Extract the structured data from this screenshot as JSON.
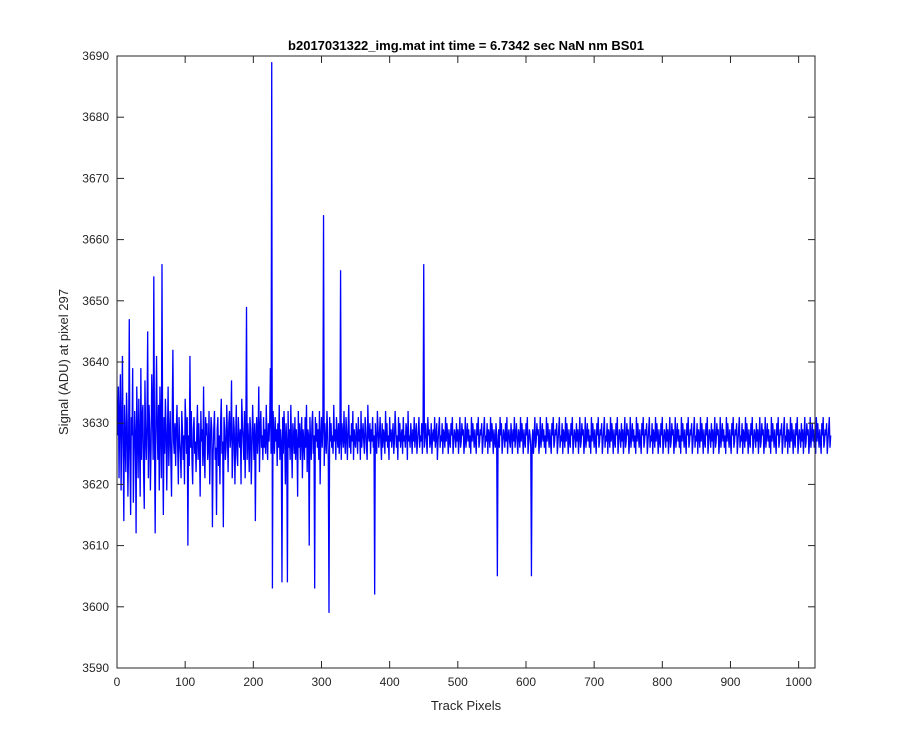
{
  "chart_data": {
    "type": "line",
    "title": "b2017031322_img.mat int time = 6.7342 sec  NaN nm BS01",
    "xlabel": "Track Pixels",
    "ylabel": "Signal (ADU) at pixel 297",
    "xlim": [
      0,
      1024
    ],
    "ylim": [
      3590,
      3690
    ],
    "xticks": [
      0,
      100,
      200,
      300,
      400,
      500,
      600,
      700,
      800,
      900,
      1000
    ],
    "yticks": [
      3590,
      3600,
      3610,
      3620,
      3630,
      3640,
      3650,
      3660,
      3670,
      3680,
      3690
    ],
    "grid": false,
    "legend": "none",
    "line_color": "#0000ff",
    "series": [
      {
        "x_start": 1,
        "x_step": 1,
        "values_note": "",
        "values": [
          3628,
          3636,
          3621,
          3632,
          3638,
          3619,
          3629,
          3641,
          3626,
          3614,
          3633,
          3627,
          3622,
          3635,
          3630,
          3618,
          3626,
          3647,
          3624,
          3615,
          3631,
          3628,
          3639,
          3617,
          3625,
          3632,
          3628,
          3612,
          3636,
          3629,
          3621,
          3634,
          3627,
          3618,
          3639,
          3624,
          3631,
          3633,
          3622,
          3616,
          3637,
          3628,
          3624,
          3630,
          3645,
          3621,
          3633,
          3629,
          3619,
          3626,
          3638,
          3632,
          3624,
          3654,
          3627,
          3612,
          3630,
          3641,
          3629,
          3624,
          3633,
          3619,
          3636,
          3629,
          3621,
          3656,
          3627,
          3615,
          3631,
          3625,
          3634,
          3629,
          3619,
          3628,
          3636,
          3623,
          3628,
          3632,
          3624,
          3618,
          3631,
          3642,
          3627,
          3625,
          3630,
          3623,
          3629,
          3633,
          3626,
          3620,
          3631,
          3627,
          3625,
          3621,
          3632,
          3629,
          3624,
          3628,
          3620,
          3634,
          3630,
          3625,
          3631,
          3610,
          3628,
          3623,
          3641,
          3626,
          3632,
          3624,
          3620,
          3629,
          3631,
          3625,
          3627,
          3622,
          3628,
          3633,
          3624,
          3630,
          3626,
          3618,
          3632,
          3627,
          3629,
          3623,
          3636,
          3625,
          3621,
          3631,
          3628,
          3630,
          3624,
          3626,
          3632,
          3620,
          3627,
          3631,
          3629,
          3613,
          3625,
          3629,
          3632,
          3624,
          3626,
          3615,
          3629,
          3631,
          3623,
          3628,
          3620,
          3630,
          3634,
          3625,
          3627,
          3613,
          3631,
          3629,
          3624,
          3626,
          3633,
          3628,
          3622,
          3630,
          3632,
          3626,
          3628,
          3637,
          3621,
          3625,
          3631,
          3629,
          3620,
          3627,
          3633,
          3625,
          3623,
          3631,
          3628,
          3626,
          3629,
          3620,
          3634,
          3630,
          3627,
          3624,
          3632,
          3621,
          3628,
          3649,
          3624,
          3630,
          3627,
          3622,
          3631,
          3629,
          3620,
          3626,
          3633,
          3628,
          3624,
          3630,
          3614,
          3628,
          3631,
          3625,
          3628,
          3636,
          3622,
          3629,
          3632,
          3626,
          3628,
          3624,
          3631,
          3626,
          3629,
          3625,
          3633,
          3627,
          3624,
          3630,
          3627,
          3630,
          3639,
          3625,
          3689,
          3603,
          3632,
          3628,
          3625,
          3631,
          3627,
          3629,
          3623,
          3630,
          3626,
          3633,
          3624,
          3629,
          3627,
          3604,
          3631,
          3625,
          3632,
          3628,
          3620,
          3630,
          3627,
          3604,
          3632,
          3626,
          3629,
          3624,
          3633,
          3627,
          3621,
          3630,
          3628,
          3625,
          3631,
          3624,
          3629,
          3627,
          3618,
          3632,
          3626,
          3630,
          3624,
          3628,
          3631,
          3621,
          3629,
          3627,
          3624,
          3631,
          3626,
          3633,
          3622,
          3629,
          3628,
          3610,
          3631,
          3627,
          3624,
          3630,
          3632,
          3625,
          3628,
          3603,
          3631,
          3627,
          3630,
          3626,
          3629,
          3624,
          3632,
          3620,
          3628,
          3631,
          3626,
          3629,
          3664,
          3623,
          3630,
          3627,
          3625,
          3632,
          3629,
          3624,
          3599,
          3631,
          3627,
          3630,
          3626,
          3628,
          3625,
          3633,
          3627,
          3629,
          3624,
          3631,
          3628,
          3626,
          3630,
          3625,
          3627,
          3655,
          3624,
          3630,
          3628,
          3626,
          3632,
          3627,
          3625,
          3631,
          3628,
          3624,
          3629,
          3633,
          3626,
          3628,
          3625,
          3630,
          3627,
          3632,
          3624,
          3629,
          3627,
          3626,
          3630,
          3628,
          3625,
          3631,
          3627,
          3629,
          3624,
          3632,
          3626,
          3628,
          3630,
          3627,
          3625,
          3631,
          3629,
          3626,
          3624,
          3633,
          3628,
          3627,
          3630,
          3625,
          3629,
          3627,
          3631,
          3626,
          3628,
          3602,
          3630,
          3627,
          3625,
          3632,
          3629,
          3626,
          3628,
          3631,
          3627,
          3624,
          3630,
          3626,
          3629,
          3628,
          3625,
          3632,
          3627,
          3630,
          3626,
          3628,
          3624,
          3631,
          3627,
          3629,
          3626,
          3628,
          3630,
          3625,
          3627,
          3632,
          3629,
          3626,
          3628,
          3624,
          3631,
          3627,
          3630,
          3626,
          3628,
          3629,
          3625,
          3631,
          3627,
          3628,
          3626,
          3630,
          3629,
          3624,
          3632,
          3627,
          3628,
          3626,
          3630,
          3628,
          3625,
          3629,
          3627,
          3631,
          3626,
          3628,
          3630,
          3625,
          3627,
          3629,
          3631,
          3626,
          3628,
          3627,
          3630,
          3625,
          3629,
          3656,
          3626,
          3628,
          3630,
          3627,
          3625,
          3631,
          3628,
          3629,
          3626,
          3627,
          3630,
          3625,
          3628,
          3629,
          3627,
          3631,
          3626,
          3628,
          3630,
          3624,
          3627,
          3629,
          3631,
          3626,
          3628,
          3627,
          3630,
          3625,
          3629,
          3628,
          3626,
          3631,
          3627,
          3630,
          3628,
          3625,
          3629,
          3627,
          3626,
          3630,
          3628,
          3631,
          3625,
          3627,
          3629,
          3628,
          3626,
          3630,
          3627,
          3629,
          3625,
          3628,
          3631,
          3626,
          3627,
          3630,
          3628,
          3629,
          3625,
          3627,
          3631,
          3626,
          3628,
          3630,
          3627,
          3629,
          3626,
          3628,
          3625,
          3631,
          3627,
          3630,
          3628,
          3626,
          3629,
          3627,
          3625,
          3630,
          3628,
          3631,
          3626,
          3627,
          3629,
          3628,
          3630,
          3625,
          3627,
          3629,
          3631,
          3626,
          3628,
          3627,
          3630,
          3625,
          3629,
          3628,
          3626,
          3631,
          3627,
          3630,
          3628,
          3625,
          3629,
          3627,
          3626,
          3630,
          3628,
          3605,
          3627,
          3629,
          3626,
          3631,
          3628,
          3630,
          3625,
          3627,
          3629,
          3628,
          3626,
          3630,
          3627,
          3631,
          3625,
          3628,
          3629,
          3627,
          3626,
          3630,
          3628,
          3625,
          3629,
          3627,
          3631,
          3626,
          3628,
          3630,
          3627,
          3625,
          3629,
          3628,
          3626,
          3631,
          3627,
          3630,
          3628,
          3625,
          3629,
          3627,
          3626,
          3630,
          3628,
          3631,
          3625,
          3627,
          3629,
          3628,
          3626,
          3605,
          3627,
          3629,
          3625,
          3628,
          3631,
          3626,
          3627,
          3630,
          3628,
          3629,
          3625,
          3627,
          3631,
          3626,
          3628,
          3630,
          3627,
          3629,
          3626,
          3628,
          3625,
          3631,
          3627,
          3630,
          3628,
          3626,
          3629,
          3627,
          3625,
          3630,
          3628,
          3631,
          3626,
          3627,
          3629,
          3628,
          3630,
          3625,
          3627,
          3629,
          3631,
          3626,
          3628,
          3627,
          3630,
          3625,
          3629,
          3628,
          3626,
          3631,
          3627,
          3630,
          3628,
          3625,
          3629,
          3627,
          3626,
          3630,
          3628,
          3631,
          3625,
          3627,
          3629,
          3628,
          3626,
          3630,
          3627,
          3629,
          3625,
          3628,
          3631,
          3626,
          3627,
          3630,
          3628,
          3629,
          3625,
          3627,
          3631,
          3626,
          3628,
          3630,
          3627,
          3629,
          3626,
          3628,
          3625,
          3631,
          3627,
          3630,
          3628,
          3626,
          3629,
          3627,
          3625,
          3630,
          3628,
          3631,
          3626,
          3627,
          3629,
          3628,
          3630,
          3625,
          3627,
          3629,
          3631,
          3626,
          3628,
          3627,
          3630,
          3625,
          3629,
          3628,
          3626,
          3631,
          3627,
          3630,
          3628,
          3625,
          3629,
          3627,
          3626,
          3630,
          3628,
          3631,
          3625,
          3627,
          3629,
          3628,
          3626,
          3630,
          3627,
          3629,
          3625,
          3628,
          3631,
          3626,
          3627,
          3630,
          3628,
          3629,
          3625,
          3627,
          3631,
          3626,
          3628,
          3630,
          3627,
          3629,
          3626,
          3628,
          3625,
          3631,
          3627,
          3630,
          3628,
          3626,
          3629,
          3627,
          3625,
          3630,
          3628,
          3631,
          3626,
          3627,
          3629,
          3628,
          3630,
          3625,
          3627,
          3629,
          3631,
          3626,
          3628,
          3627,
          3630,
          3625,
          3629,
          3628,
          3626,
          3631,
          3627,
          3630,
          3628,
          3625,
          3629,
          3627,
          3626,
          3630,
          3628,
          3631,
          3625,
          3627,
          3629,
          3628,
          3626,
          3630,
          3627,
          3629,
          3625,
          3628,
          3631,
          3626,
          3627,
          3630,
          3628,
          3629,
          3625,
          3627,
          3631,
          3626,
          3628,
          3630,
          3627,
          3629,
          3626,
          3628,
          3625,
          3631,
          3627,
          3630,
          3628,
          3626,
          3629,
          3627,
          3625,
          3630,
          3628,
          3631,
          3626,
          3627,
          3629,
          3628,
          3630,
          3625,
          3627,
          3629,
          3631,
          3626,
          3628,
          3627,
          3630,
          3625,
          3629,
          3628,
          3626,
          3631,
          3627,
          3630,
          3628,
          3625,
          3629,
          3627,
          3626,
          3630,
          3628,
          3631,
          3625,
          3627,
          3629,
          3628,
          3626,
          3630,
          3627,
          3629,
          3625,
          3628,
          3631,
          3626,
          3627,
          3630,
          3628,
          3629,
          3625,
          3627,
          3631,
          3626,
          3628,
          3630,
          3627,
          3629,
          3626,
          3628,
          3625,
          3631,
          3627,
          3630,
          3628,
          3626,
          3629,
          3627,
          3625,
          3630,
          3628,
          3631,
          3626,
          3627,
          3629,
          3628,
          3630,
          3625,
          3627,
          3629,
          3631,
          3626,
          3628,
          3627,
          3630,
          3625,
          3629,
          3628,
          3626,
          3631,
          3627,
          3630,
          3628,
          3625,
          3629,
          3627,
          3626,
          3630,
          3628,
          3631,
          3625,
          3627,
          3629,
          3628,
          3626,
          3630,
          3627,
          3629,
          3625,
          3628,
          3631,
          3626,
          3627,
          3630,
          3628,
          3629,
          3625,
          3627,
          3631,
          3626,
          3628,
          3630,
          3627,
          3629,
          3626,
          3628,
          3625,
          3631,
          3627,
          3630,
          3628,
          3626,
          3629,
          3627,
          3625,
          3630,
          3628,
          3631,
          3626,
          3627,
          3629,
          3628,
          3630,
          3625,
          3627,
          3629,
          3631,
          3626,
          3628,
          3627,
          3630,
          3625,
          3629,
          3628,
          3626,
          3631,
          3627,
          3630,
          3628,
          3625,
          3629,
          3627,
          3626,
          3630,
          3628,
          3631,
          3625,
          3627,
          3629,
          3628,
          3626,
          3630,
          3627,
          3629,
          3625,
          3628,
          3631,
          3626,
          3627,
          3630,
          3628,
          3629,
          3625,
          3627,
          3631,
          3626,
          3628,
          3630,
          3627,
          3629,
          3626,
          3628,
          3625,
          3631,
          3627,
          3630,
          3628,
          3626,
          3629,
          3627,
          3625,
          3630,
          3628,
          3631,
          3626,
          3627,
          3629,
          3628,
          3630,
          3625,
          3627,
          3629,
          3631,
          3626,
          3628
        ]
      }
    ]
  }
}
